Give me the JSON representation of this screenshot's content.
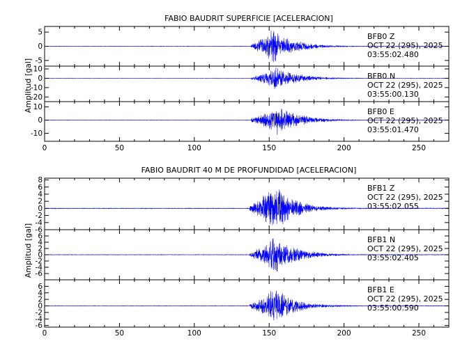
{
  "chart_data": [
    {
      "type": "line",
      "title": "FABIO BAUDRIT SUPERFICIE [ACELERACION]",
      "xlabel": "",
      "ylabel": "Amplitud [gal]",
      "xlim": [
        0,
        270
      ],
      "xticks": [
        0,
        50,
        100,
        150,
        200,
        250
      ],
      "grid": false,
      "panels": [
        {
          "station": "BFB0",
          "component": "Z",
          "date": "OCT 22 (295), 2025",
          "time": "03:55:02.480",
          "ylim": [
            -7,
            7
          ],
          "yticks": [
            5,
            0,
            -5
          ],
          "peak": 6.5,
          "event_start": 138,
          "event_peak": 152,
          "color": "#0000ff"
        },
        {
          "station": "BFB0",
          "component": "N",
          "date": "OCT 22 (295), 2025",
          "time": "03:55:00.130",
          "ylim": [
            -25,
            13
          ],
          "yticks": [
            10,
            0,
            -10,
            -20
          ],
          "peak": 13,
          "event_start": 138,
          "event_peak": 155,
          "color": "#0000ff"
        },
        {
          "station": "BFB0",
          "component": "E",
          "date": "OCT 22 (295), 2025",
          "time": "03:55:01.470",
          "ylim": [
            -16,
            14
          ],
          "yticks": [
            10,
            0,
            -10
          ],
          "peak": 12,
          "event_start": 138,
          "event_peak": 156,
          "color": "#0000ff"
        }
      ]
    },
    {
      "type": "line",
      "title": "FABIO BAUDRIT 40 M DE PROFUNDIDAD [ACELERACION]",
      "xlabel": "",
      "ylabel": "Amplitud [gal]",
      "xlim": [
        0,
        270
      ],
      "xticks": [
        0,
        50,
        100,
        150,
        200,
        250
      ],
      "grid": false,
      "panels": [
        {
          "station": "BFB1",
          "component": "Z",
          "date": "OCT 22 (295), 2025",
          "time": "03:55:02.055",
          "ylim": [
            -6,
            8.5
          ],
          "yticks": [
            8,
            6,
            4,
            2,
            0,
            -2,
            -4,
            -6
          ],
          "tick_labels": [
            "8",
            "6",
            "4",
            "2",
            "0",
            "-2",
            "-4",
            "-6"
          ],
          "peak": 7,
          "event_start": 137,
          "event_peak": 153,
          "color": "#0000ff"
        },
        {
          "station": "BFB1",
          "component": "N",
          "date": "OCT 22 (295), 2025",
          "time": "03:55:02.405",
          "ylim": [
            -8,
            8
          ],
          "yticks": [
            6,
            4,
            2,
            0,
            -2,
            -4,
            -6
          ],
          "tick_labels": [
            "6",
            "4",
            "2",
            "0",
            "-2",
            "-4",
            "-6"
          ],
          "peak": 6.5,
          "event_start": 137,
          "event_peak": 154,
          "color": "#0000ff"
        },
        {
          "station": "BFB1",
          "component": "E",
          "date": "OCT 22 (295), 2025",
          "time": "03:55:00.590",
          "ylim": [
            -6.5,
            8
          ],
          "yticks": [
            6,
            4,
            2,
            0,
            -2,
            -4,
            -6
          ],
          "tick_labels": [
            "6",
            "4",
            "2",
            "0",
            "-2",
            "-4",
            "-6"
          ],
          "peak": 6,
          "event_start": 137,
          "event_peak": 153,
          "color": "#0000ff"
        }
      ]
    }
  ]
}
